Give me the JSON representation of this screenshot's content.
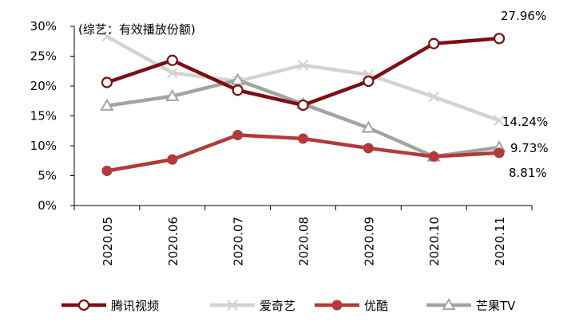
{
  "chart_data": {
    "type": "line",
    "annotation": "(综艺：有效播放份额)",
    "categories": [
      "2020.05",
      "2020.06",
      "2020.07",
      "2020.08",
      "2020.09",
      "2020.10",
      "2020.11"
    ],
    "y_ticks": [
      "0%",
      "5%",
      "10%",
      "15%",
      "20%",
      "25%",
      "30%"
    ],
    "ylim": [
      0,
      30
    ],
    "grid": false,
    "legend_position": "bottom",
    "series": [
      {
        "name": "腾讯视频",
        "color": "#7b0f13",
        "marker": "open-circle",
        "values": [
          20.6,
          24.3,
          19.3,
          16.8,
          20.8,
          27.1,
          27.96
        ],
        "end_label": "27.96%"
      },
      {
        "name": "爱奇艺",
        "color": "#d4d4cf",
        "marker": "x",
        "values": [
          28.3,
          22.2,
          20.8,
          23.5,
          21.9,
          18.2,
          14.24
        ],
        "end_label": "14.24%"
      },
      {
        "name": "优酷",
        "color": "#b13a3a",
        "marker": "filled-circle",
        "values": [
          5.8,
          7.7,
          11.8,
          11.2,
          9.6,
          8.2,
          8.81
        ],
        "end_label": "8.81%"
      },
      {
        "name": "芒果TV",
        "color": "#a3a3a0",
        "marker": "open-triangle",
        "values": [
          16.7,
          18.3,
          21.0,
          17.0,
          13.0,
          8.2,
          9.73
        ],
        "end_label": "9.73%"
      }
    ]
  }
}
